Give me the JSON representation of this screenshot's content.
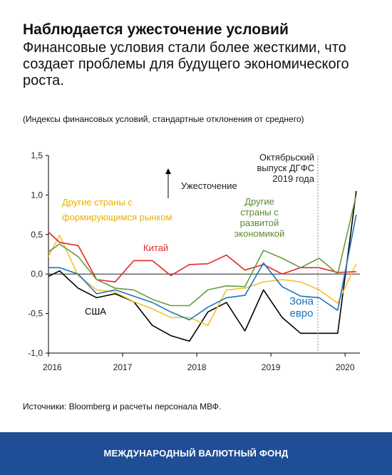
{
  "header": {
    "title": "Наблюдается ужесточение условий",
    "subtitle": "Финансовые условия стали более жесткими, что создает проблемы для будущего экономического роста.",
    "note": "(Индексы финансовых условий, стандартные отклонения от среднего)"
  },
  "source": "Источники: Bloomberg и расчеты персонала МВФ.",
  "footer": {
    "org": "МЕЖДУНАРОДНЫЙ ВАЛЮТНЫЙ ФОНД",
    "background": "#1f4e96"
  },
  "chart_data": {
    "type": "line",
    "x": [
      2016.0,
      2016.15,
      2016.4,
      2016.65,
      2016.9,
      2017.15,
      2017.4,
      2017.65,
      2017.9,
      2018.15,
      2018.4,
      2018.65,
      2018.9,
      2019.15,
      2019.4,
      2019.65,
      2019.9,
      2020.15
    ],
    "xlim": [
      2016.0,
      2020.2
    ],
    "xticks": [
      "2016",
      "2017",
      "2018",
      "2019",
      "2020"
    ],
    "ylim": [
      -1.0,
      1.5
    ],
    "yticks": [
      "1,5",
      "1,0",
      "0,5",
      "0,0",
      "-0,5",
      "-1,0"
    ],
    "series": [
      {
        "name": "США",
        "color": "#000000",
        "values": [
          -0.03,
          0.04,
          -0.18,
          -0.3,
          -0.25,
          -0.35,
          -0.65,
          -0.78,
          -0.85,
          -0.48,
          -0.36,
          -0.72,
          -0.2,
          -0.55,
          -0.75,
          -0.75,
          -0.75,
          1.05
        ]
      },
      {
        "name": "Другие страны с формирующимся рынком",
        "color": "#f2c22e",
        "values": [
          0.22,
          0.49,
          -0.02,
          -0.2,
          -0.23,
          -0.35,
          -0.44,
          -0.55,
          -0.55,
          -0.65,
          -0.2,
          -0.18,
          -0.1,
          -0.07,
          -0.1,
          -0.2,
          -0.37,
          0.13
        ]
      },
      {
        "name": "Китай",
        "color": "#e52727",
        "values": [
          0.53,
          0.4,
          0.36,
          -0.07,
          -0.1,
          0.17,
          0.17,
          -0.02,
          0.12,
          0.13,
          0.24,
          0.05,
          0.12,
          0.0,
          0.08,
          0.08,
          0.02,
          0.03
        ]
      },
      {
        "name": "Другие страны с развитой экономикой",
        "color": "#6a9a3f",
        "values": [
          0.28,
          0.38,
          0.22,
          -0.07,
          -0.18,
          -0.2,
          -0.32,
          -0.4,
          -0.4,
          -0.2,
          -0.15,
          -0.16,
          0.3,
          0.2,
          0.08,
          0.2,
          0.0,
          1.0
        ]
      },
      {
        "name": "Зона евро",
        "color": "#1d73b8",
        "values": [
          0.08,
          0.08,
          0.0,
          -0.25,
          -0.2,
          -0.28,
          -0.36,
          -0.48,
          -0.58,
          -0.42,
          -0.3,
          -0.27,
          0.14,
          -0.16,
          -0.28,
          -0.3,
          -0.46,
          0.75
        ]
      }
    ],
    "labels": {
      "usa": "США",
      "em_line1": "Другие страны с",
      "em_line2": "формирующимся рынком",
      "china": "Китай",
      "ae_line1": "Другие",
      "ae_line2": "страны с",
      "ae_line3": "развитой",
      "ae_line4": "экономикой",
      "ez_line1": "Зона",
      "ez_line2": "евро",
      "tightening": "Ужесточение",
      "gfsr_line1": "Октябрьский",
      "gfsr_line2": "выпуск ДГФС",
      "gfsr_line3": "2019 года"
    },
    "vline_x": 2019.7,
    "grid": false
  }
}
